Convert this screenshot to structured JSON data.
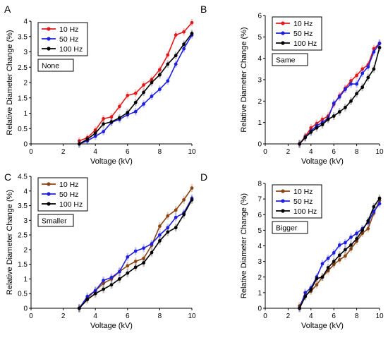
{
  "colors": {
    "s10_red": "#e31a1c",
    "s10_brown": "#8b4513",
    "s50": "#1f1fe0",
    "s100": "#000000"
  },
  "chart_data": [
    {
      "type": "line",
      "panel": "A",
      "condition": "None",
      "xlabel": "Voltage (kV)",
      "ylabel": "Relative Diameter Change (%)",
      "xlim": [
        0,
        10
      ],
      "ylim": [
        0,
        4
      ],
      "xticks": [
        "0",
        "2",
        "4",
        "6",
        "8",
        "10"
      ],
      "yticks": [
        "0",
        "0.5",
        "1",
        "1.5",
        "2",
        "2.5",
        "3",
        "3.5",
        "4"
      ],
      "legend_position": "top-left",
      "series": [
        {
          "name": "10 Hz",
          "color_key": "s10_red",
          "x": [
            3,
            3.5,
            4,
            4.5,
            5,
            5.5,
            6,
            6.5,
            7,
            7.5,
            8,
            8.5,
            9,
            9.5,
            10
          ],
          "y": [
            0.1,
            0.2,
            0.45,
            0.82,
            0.88,
            1.22,
            1.58,
            1.65,
            1.92,
            2.1,
            2.42,
            2.9,
            3.55,
            3.65,
            3.95
          ]
        },
        {
          "name": "50 Hz",
          "color_key": "s50",
          "x": [
            3,
            3.5,
            4,
            4.5,
            5,
            5.5,
            6,
            6.5,
            7,
            7.5,
            8,
            8.5,
            9,
            9.5,
            10
          ],
          "y": [
            0.0,
            0.1,
            0.25,
            0.4,
            0.7,
            0.8,
            0.95,
            1.05,
            1.3,
            1.55,
            1.78,
            2.05,
            2.6,
            3.1,
            3.55
          ]
        },
        {
          "name": "100 Hz",
          "color_key": "s100",
          "x": [
            3,
            3.5,
            4,
            4.5,
            5,
            5.5,
            6,
            6.5,
            7,
            7.5,
            8,
            8.5,
            9,
            9.5,
            10
          ],
          "y": [
            0.0,
            0.15,
            0.35,
            0.65,
            0.72,
            0.85,
            1.02,
            1.35,
            1.68,
            2.0,
            2.25,
            2.6,
            2.88,
            3.25,
            3.6
          ]
        }
      ]
    },
    {
      "type": "line",
      "panel": "B",
      "condition": "Same",
      "xlabel": "Voltage (kV)",
      "ylabel": "Relative Diameter Change (%)",
      "xlim": [
        0,
        10
      ],
      "ylim": [
        0,
        6
      ],
      "xticks": [
        "0",
        "2",
        "4",
        "6",
        "8",
        "10"
      ],
      "yticks": [
        "0",
        "1",
        "2",
        "3",
        "4",
        "5",
        "6"
      ],
      "legend_position": "top-left",
      "series": [
        {
          "name": "10 Hz",
          "color_key": "s10_red",
          "x": [
            3,
            3.5,
            4,
            4.5,
            5,
            5.5,
            6,
            6.5,
            7,
            7.5,
            8,
            8.5,
            9,
            9.5,
            10
          ],
          "y": [
            0.0,
            0.35,
            0.75,
            0.95,
            1.15,
            1.3,
            1.85,
            2.25,
            2.6,
            2.95,
            3.2,
            3.5,
            3.7,
            4.45,
            4.7
          ]
        },
        {
          "name": "50 Hz",
          "color_key": "s50",
          "x": [
            3,
            3.5,
            4,
            4.5,
            5,
            5.5,
            6,
            6.5,
            7,
            7.5,
            8,
            8.5,
            9,
            9.5,
            10
          ],
          "y": [
            0.0,
            0.3,
            0.6,
            0.85,
            1.0,
            1.2,
            1.9,
            2.2,
            2.55,
            2.8,
            2.8,
            3.3,
            3.6,
            4.3,
            4.7
          ]
        },
        {
          "name": "100 Hz",
          "color_key": "s100",
          "x": [
            3,
            3.5,
            4,
            4.5,
            5,
            5.5,
            6,
            6.5,
            7,
            7.5,
            8,
            8.5,
            9,
            9.5,
            10
          ],
          "y": [
            0.0,
            0.3,
            0.55,
            0.75,
            0.9,
            1.15,
            1.3,
            1.5,
            1.7,
            2.0,
            2.35,
            2.65,
            3.1,
            3.5,
            4.5
          ]
        }
      ]
    },
    {
      "type": "line",
      "panel": "C",
      "condition": "Smaller",
      "xlabel": "Voltage (kV)",
      "ylabel": "Relative Diameter Change (%)",
      "xlim": [
        0,
        10
      ],
      "ylim": [
        0,
        4.5
      ],
      "xticks": [
        "0",
        "2",
        "4",
        "6",
        "8",
        "10"
      ],
      "yticks": [
        "0",
        "0.5",
        "1",
        "1.5",
        "2",
        "2.5",
        "3",
        "3.5",
        "4",
        "4.5"
      ],
      "legend_position": "top-left",
      "series": [
        {
          "name": "10 Hz",
          "color_key": "s10_brown",
          "x": [
            3,
            3.5,
            4,
            4.5,
            5,
            5.5,
            6,
            6.5,
            7,
            7.5,
            8,
            8.5,
            9,
            9.5,
            10
          ],
          "y": [
            0.0,
            0.35,
            0.6,
            0.85,
            1.0,
            1.25,
            1.45,
            1.6,
            1.7,
            2.15,
            2.8,
            3.15,
            3.35,
            3.7,
            4.1
          ]
        },
        {
          "name": "50 Hz",
          "color_key": "s50",
          "x": [
            3,
            3.5,
            4,
            4.5,
            5,
            5.5,
            6,
            6.5,
            7,
            7.5,
            8,
            8.5,
            9,
            9.5,
            10
          ],
          "y": [
            0.0,
            0.4,
            0.6,
            0.95,
            1.05,
            1.25,
            1.75,
            1.95,
            2.05,
            2.2,
            2.5,
            2.75,
            3.1,
            3.25,
            3.75
          ]
        },
        {
          "name": "100 Hz",
          "color_key": "s100",
          "x": [
            3,
            3.5,
            4,
            4.5,
            5,
            5.5,
            6,
            6.5,
            7,
            7.5,
            8,
            8.5,
            9,
            9.5,
            10
          ],
          "y": [
            0.0,
            0.3,
            0.5,
            0.65,
            0.8,
            1.0,
            1.2,
            1.4,
            1.55,
            1.9,
            2.3,
            2.6,
            2.75,
            3.2,
            3.7
          ]
        }
      ]
    },
    {
      "type": "line",
      "panel": "D",
      "condition": "Bigger",
      "xlabel": "Voltage (kV)",
      "ylabel": "Relative Diameter Change (%)",
      "xlim": [
        0,
        10
      ],
      "ylim": [
        0,
        8
      ],
      "xticks": [
        "0",
        "2",
        "4",
        "6",
        "8",
        "10"
      ],
      "yticks": [
        "0",
        "1",
        "2",
        "3",
        "4",
        "5",
        "6",
        "7",
        "8"
      ],
      "legend_position": "top-left",
      "series": [
        {
          "name": "10 Hz",
          "color_key": "s10_brown",
          "x": [
            3,
            3.5,
            4,
            4.5,
            5,
            5.5,
            6,
            6.5,
            7,
            7.5,
            8,
            8.5,
            9,
            9.5,
            10
          ],
          "y": [
            0.15,
            0.8,
            1.1,
            1.5,
            2.0,
            2.4,
            2.8,
            3.1,
            3.35,
            3.8,
            4.3,
            4.8,
            5.1,
            6.1,
            6.9
          ]
        },
        {
          "name": "50 Hz",
          "color_key": "s50",
          "x": [
            3,
            3.5,
            4,
            4.5,
            5,
            5.5,
            6,
            6.5,
            7,
            7.5,
            8,
            8.5,
            9,
            9.5,
            10
          ],
          "y": [
            0.0,
            1.0,
            1.3,
            2.0,
            2.85,
            3.2,
            3.55,
            4.05,
            4.2,
            4.55,
            4.8,
            5.1,
            5.5,
            6.2,
            6.7
          ]
        },
        {
          "name": "100 Hz",
          "color_key": "s100",
          "x": [
            3,
            3.5,
            4,
            4.5,
            5,
            5.5,
            6,
            6.5,
            7,
            7.5,
            8,
            8.5,
            9,
            9.5,
            10
          ],
          "y": [
            0.0,
            0.75,
            1.2,
            1.9,
            2.0,
            2.6,
            3.0,
            3.4,
            3.75,
            4.05,
            4.45,
            5.0,
            5.6,
            6.5,
            7.05
          ]
        }
      ]
    }
  ]
}
